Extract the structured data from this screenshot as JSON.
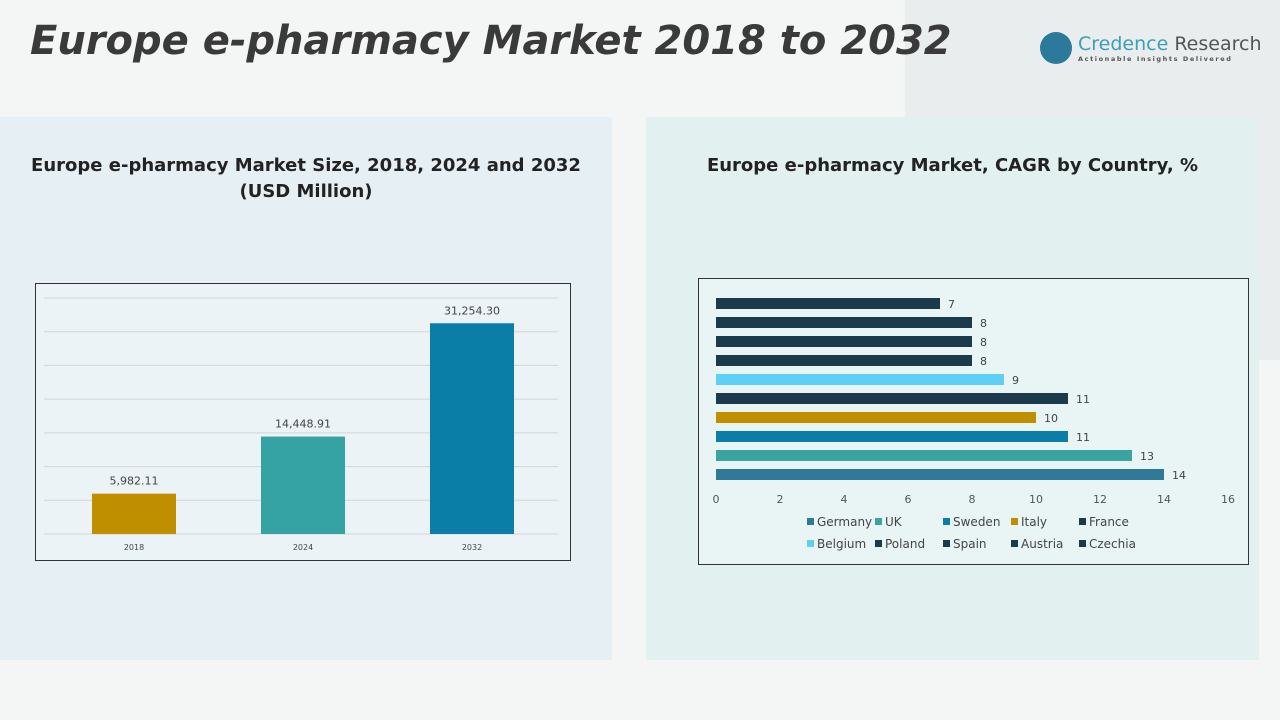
{
  "header": {
    "title": "Europe e-pharmacy Market 2018 to 2032",
    "logo_name": "Credence",
    "logo_name2": "Research",
    "logo_tagline": "Actionable Insights Delivered"
  },
  "colors": {
    "gold": "#bf8f00",
    "teal": "#35a3a3",
    "blue": "#0b7ea8",
    "steel": "#2f7a99",
    "uk": "#3aa5a0",
    "dark": "#1b3a4b",
    "light_blue": "#5fd0f5"
  },
  "chart_data": [
    {
      "type": "bar",
      "title": "Europe e-pharmacy Market Size, 2018, 2024 and 2032",
      "subtitle": "(USD Million)",
      "categories": [
        "2018",
        "2024",
        "2032"
      ],
      "values": [
        5982.11,
        14448.91,
        31254.3
      ],
      "labels": [
        "5,982.11",
        "14,448.91",
        "31,254.30"
      ],
      "colors": [
        "#bf8f00",
        "#35a3a3",
        "#0b7ea8"
      ],
      "ylim": [
        0,
        35000
      ],
      "grid": true
    },
    {
      "type": "bar",
      "orientation": "horizontal",
      "title": "Europe e-pharmacy Market, CAGR by Country, %",
      "categories": [
        "Germany",
        "UK",
        "Sweden",
        "Italy",
        "France",
        "Belgium",
        "Poland",
        "Spain",
        "Austria",
        "Czechia"
      ],
      "values": [
        14,
        13,
        11,
        10,
        11,
        9,
        8,
        8,
        8,
        7
      ],
      "colors": [
        "#2f7a99",
        "#3aa5a0",
        "#0b7ea8",
        "#bf8f00",
        "#1b3a4b",
        "#5fd0f5",
        "#1b3a4b",
        "#1b3a4b",
        "#1b3a4b",
        "#1b3a4b"
      ],
      "xlim": [
        0,
        16
      ],
      "xticks": [
        "0",
        "2",
        "4",
        "6",
        "8",
        "10",
        "12",
        "14",
        "16"
      ],
      "legend": "bottom"
    }
  ]
}
